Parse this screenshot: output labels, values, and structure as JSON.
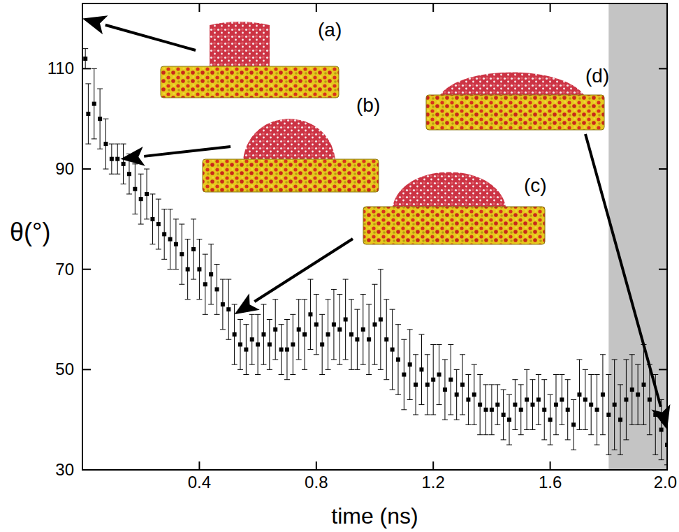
{
  "chart_data": {
    "type": "scatter",
    "x_label": "time (ns)",
    "y_label": "θ(°)",
    "xlim": [
      0,
      2.0
    ],
    "ylim": [
      30,
      123
    ],
    "xticks": [
      0.4,
      0.8,
      1.2,
      1.6,
      {
        "value": 2,
        "label": "2.0"
      }
    ],
    "yticks": [
      30,
      50,
      70,
      90,
      110
    ],
    "grid": false,
    "shaded_region": {
      "x": [
        1.8,
        2.0
      ],
      "color": "#c4c4c4"
    },
    "x": [
      0.01,
      0.02,
      0.04,
      0.06,
      0.08,
      0.1,
      0.12,
      0.14,
      0.16,
      0.18,
      0.2,
      0.22,
      0.24,
      0.26,
      0.28,
      0.3,
      0.32,
      0.34,
      0.36,
      0.38,
      0.4,
      0.42,
      0.44,
      0.46,
      0.48,
      0.5,
      0.52,
      0.54,
      0.56,
      0.58,
      0.6,
      0.62,
      0.64,
      0.66,
      0.68,
      0.7,
      0.72,
      0.74,
      0.76,
      0.78,
      0.8,
      0.82,
      0.84,
      0.86,
      0.88,
      0.9,
      0.92,
      0.94,
      0.96,
      0.98,
      1.0,
      1.02,
      1.04,
      1.06,
      1.08,
      1.1,
      1.12,
      1.14,
      1.16,
      1.18,
      1.2,
      1.22,
      1.24,
      1.26,
      1.28,
      1.3,
      1.32,
      1.34,
      1.36,
      1.38,
      1.4,
      1.42,
      1.44,
      1.46,
      1.48,
      1.5,
      1.52,
      1.54,
      1.56,
      1.58,
      1.6,
      1.62,
      1.64,
      1.66,
      1.68,
      1.7,
      1.72,
      1.74,
      1.76,
      1.78,
      1.8,
      1.82,
      1.84,
      1.86,
      1.88,
      1.9,
      1.92,
      1.94,
      1.96,
      1.98,
      2.0
    ],
    "series": [
      {
        "color": "#000000",
        "marker": "square",
        "values": [
          112,
          101,
          103,
          100,
          95,
          92,
          92,
          91,
          89,
          86,
          84,
          85,
          80,
          79,
          77,
          76,
          75,
          73,
          70,
          74,
          70,
          67,
          69,
          66,
          63,
          62,
          57,
          55,
          54,
          56,
          55,
          57,
          55,
          58,
          54,
          54,
          55,
          58,
          57,
          61,
          59,
          55,
          57,
          59,
          58,
          60,
          57,
          56,
          58,
          56,
          59,
          60,
          56,
          54,
          52,
          49,
          51,
          47,
          50,
          47,
          48,
          49,
          46,
          48,
          45,
          47,
          44,
          45,
          43,
          42,
          42,
          43,
          41,
          40,
          43,
          42,
          44,
          43,
          44,
          42,
          40,
          43,
          44,
          42,
          39,
          45,
          44,
          43,
          42,
          45,
          41,
          43,
          40,
          44,
          46,
          45,
          47,
          44,
          41,
          38,
          35
        ],
        "errors": [
          2,
          6,
          7,
          6,
          5,
          3,
          3,
          4,
          4,
          5,
          5,
          5,
          5,
          5,
          5,
          6,
          5,
          6,
          6,
          6,
          6,
          6,
          6,
          5,
          5,
          6,
          6,
          5,
          5,
          5,
          6,
          6,
          5,
          6,
          5,
          6,
          6,
          6,
          7,
          7,
          6,
          6,
          7,
          7,
          7,
          8,
          7,
          6,
          7,
          7,
          8,
          10,
          8,
          8,
          7,
          7,
          7,
          6,
          7,
          6,
          7,
          6,
          6,
          7,
          5,
          6,
          5,
          6,
          6,
          5,
          5,
          4,
          5,
          5,
          5,
          5,
          6,
          5,
          5,
          6,
          5,
          6,
          5,
          6,
          5,
          7,
          6,
          6,
          7,
          8,
          8,
          9,
          7,
          8,
          7,
          6,
          8,
          7,
          8,
          6,
          4
        ]
      }
    ],
    "annotations": [
      {
        "text": "(a)",
        "x": 0.0,
        "y": 120
      },
      {
        "text": "(b)",
        "x": 0.13,
        "y": 92
      },
      {
        "text": "(c)",
        "x": 0.52,
        "y": 61
      },
      {
        "text": "(d)",
        "x": 2.0,
        "y": 38
      }
    ]
  }
}
